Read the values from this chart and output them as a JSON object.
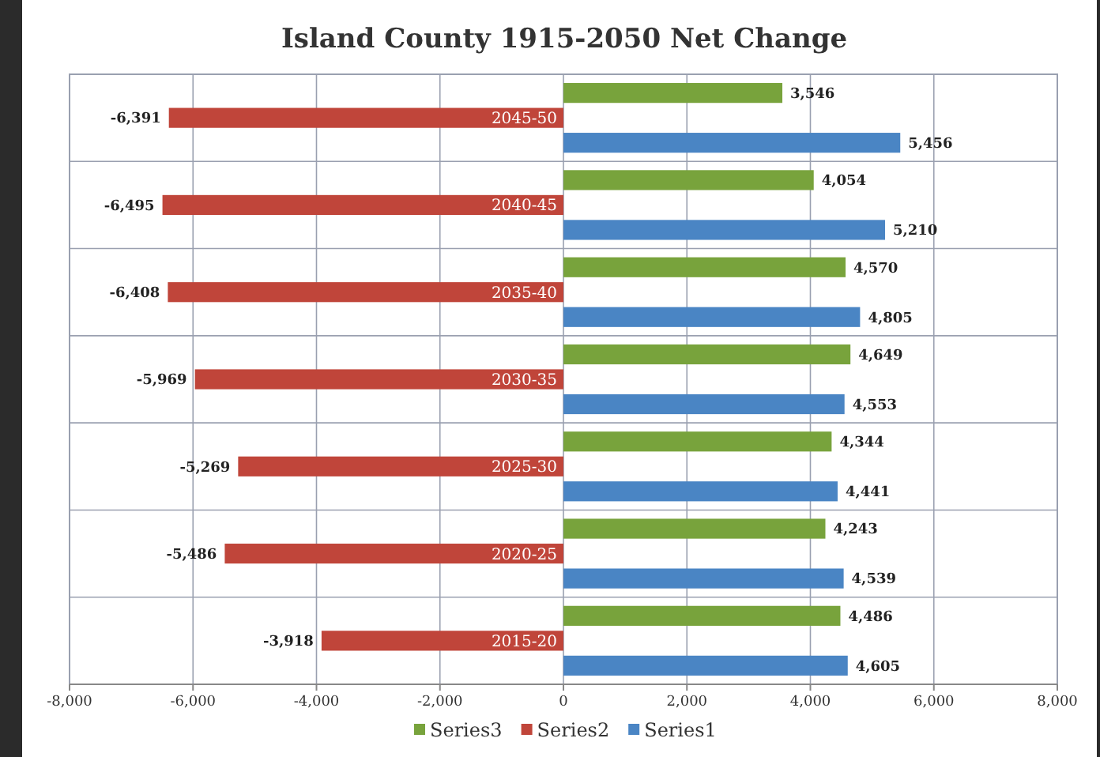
{
  "chart_data": {
    "type": "bar",
    "orientation": "horizontal",
    "title": "Island County 1915-2050 Net Change",
    "categories": [
      "2045-50",
      "2040-45",
      "2035-40",
      "2030-35",
      "2025-30",
      "2020-25",
      "2015-20"
    ],
    "series": [
      {
        "name": "Series3",
        "color": "#78a33c",
        "values": [
          3546,
          4054,
          4570,
          4649,
          4344,
          4243,
          4486
        ],
        "value_labels": [
          "3,546",
          "4,054",
          "4,570",
          "4,649",
          "4,344",
          "4,243",
          "4,486"
        ]
      },
      {
        "name": "Series2",
        "color": "#c0453a",
        "values": [
          -6391,
          -6495,
          -6408,
          -5969,
          -5269,
          -5486,
          -3918
        ],
        "value_labels": [
          "-6,391",
          "-6,495",
          "-6,408",
          "-5,969",
          "-5,269",
          "-5,486",
          "-3,918"
        ]
      },
      {
        "name": "Series1",
        "color": "#4a85c4",
        "values": [
          5456,
          5210,
          4805,
          4553,
          4441,
          4539,
          4605
        ],
        "value_labels": [
          "5,456",
          "5,210",
          "4,805",
          "4,553",
          "4,441",
          "4,539",
          "4,605"
        ]
      }
    ],
    "xlim": [
      -8000,
      8000
    ],
    "xticks": [
      {
        "value": -8000,
        "label": "-8,000"
      },
      {
        "value": -6000,
        "label": "-6,000"
      },
      {
        "value": -4000,
        "label": "-4,000"
      },
      {
        "value": -2000,
        "label": "-2,000"
      },
      0,
      {
        "value": 2000,
        "label": "2,000"
      },
      {
        "value": 4000,
        "label": "4,000"
      },
      {
        "value": 6000,
        "label": "6,000"
      },
      {
        "value": 8000,
        "label": "8,000"
      }
    ],
    "grid": true,
    "legend": "bottom"
  }
}
